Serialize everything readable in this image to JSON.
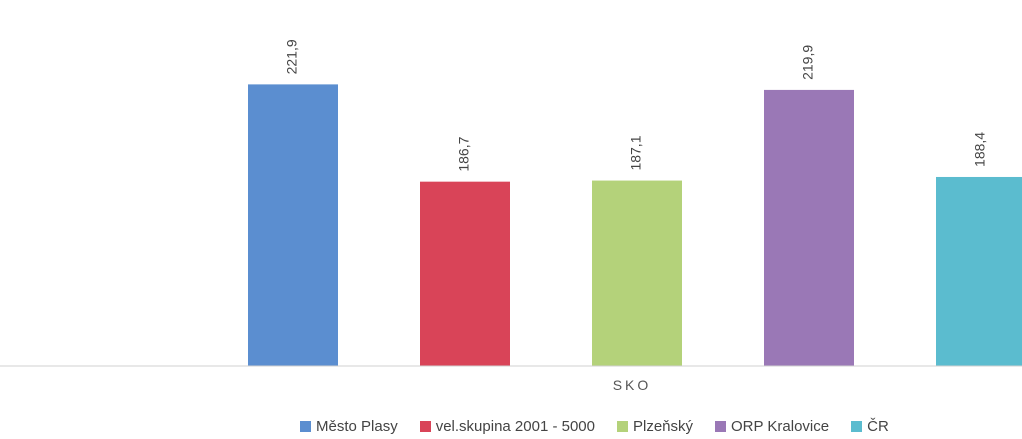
{
  "chart_data": {
    "type": "bar",
    "categories": [
      "SKO"
    ],
    "xlabel": "SKO",
    "series": [
      {
        "name": "Město Plasy",
        "values": [
          221.9
        ],
        "label": "221,9",
        "color": "#5b8ed0"
      },
      {
        "name": "vel.skupina 2001 - 5000",
        "values": [
          186.7
        ],
        "label": "186,7",
        "color": "#d94458"
      },
      {
        "name": "Plzeňský",
        "values": [
          187.1
        ],
        "label": "187,1",
        "color": "#b4d27a"
      },
      {
        "name": "ORP Kralovice",
        "values": [
          219.9
        ],
        "label": "219,9",
        "color": "#9a78b6"
      },
      {
        "name": "ČR",
        "values": [
          188.4
        ],
        "label": "188,4",
        "color": "#5bbccf"
      }
    ],
    "ylim": [
      120,
      230
    ],
    "grid": false,
    "legend": "bottom"
  }
}
